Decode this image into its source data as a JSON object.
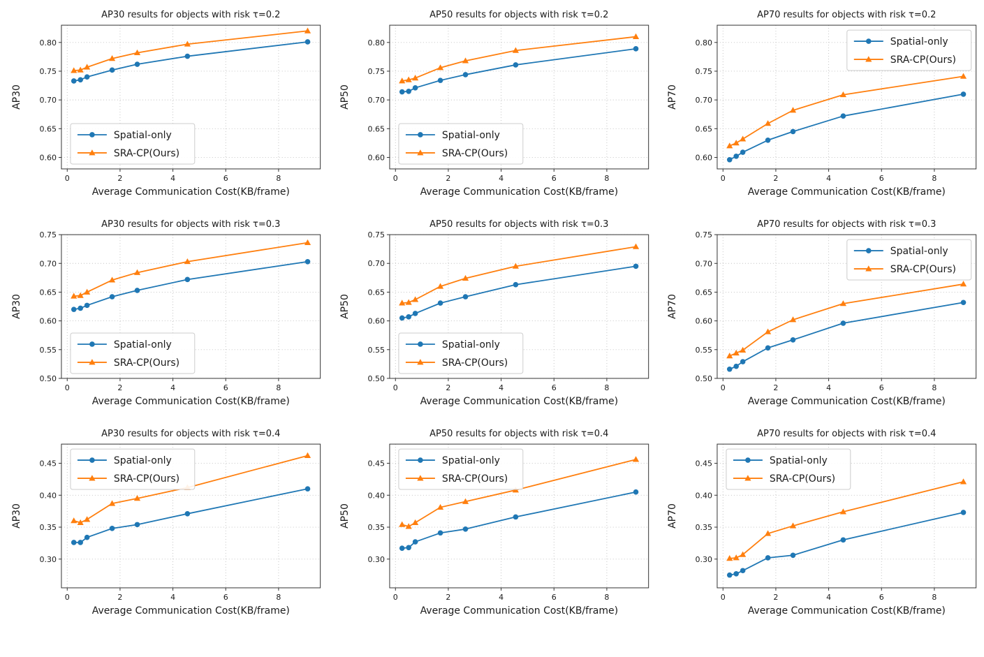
{
  "page": {
    "background": "#ffffff",
    "description": "3x3 grid of matplotlib line charts comparing collaborative perception methods"
  },
  "styles": {
    "grid_color": "#bfbfbf",
    "axis_color": "#333333",
    "text_color": "#1a1a1a",
    "legend_border": "#cccccc",
    "legend_fill": "#ffffff",
    "series_colors": {
      "spatial_only": "#1f77b4",
      "sra_cp": "#ff7f0e"
    }
  },
  "legend": {
    "items": [
      {
        "label": "Spatial-only",
        "marker": "circle",
        "color": "#1f77b4"
      },
      {
        "label": "SRA-CP(Ours)",
        "marker": "triangle",
        "color": "#ff7f0e"
      }
    ]
  },
  "xlabel": "Average Communication Cost(KB/frame)",
  "chart_data": [
    {
      "id": "ap30-tau-0-2",
      "type": "line",
      "title": "AP30 results for objects with risk τ=0.2",
      "xlabel": "Average Communication Cost(KB/frame)",
      "ylabel": "AP30",
      "x": [
        0.25,
        0.5,
        0.75,
        1.7,
        2.65,
        4.55,
        9.1
      ],
      "series": [
        {
          "name": "Spatial-only",
          "marker": "circle",
          "color": "#1f77b4",
          "values": [
            0.733,
            0.735,
            0.74,
            0.752,
            0.762,
            0.776,
            0.801
          ]
        },
        {
          "name": "SRA-CP(Ours)",
          "marker": "triangle",
          "color": "#ff7f0e",
          "values": [
            0.751,
            0.752,
            0.757,
            0.772,
            0.782,
            0.797,
            0.82
          ]
        }
      ],
      "xlim": [
        -0.22,
        9.58
      ],
      "ylim": [
        0.58,
        0.83
      ],
      "xticks": [
        0,
        2,
        4,
        6,
        8
      ],
      "yticks": [
        0.6,
        0.65,
        0.7,
        0.75,
        0.8
      ],
      "grid": true,
      "legend_position": "lower-left"
    },
    {
      "id": "ap50-tau-0-2",
      "type": "line",
      "title": "AP50 results for objects with risk τ=0.2",
      "xlabel": "Average Communication Cost(KB/frame)",
      "ylabel": "AP50",
      "x": [
        0.25,
        0.5,
        0.75,
        1.7,
        2.65,
        4.55,
        9.1
      ],
      "series": [
        {
          "name": "Spatial-only",
          "marker": "circle",
          "color": "#1f77b4",
          "values": [
            0.714,
            0.715,
            0.721,
            0.734,
            0.744,
            0.761,
            0.789
          ]
        },
        {
          "name": "SRA-CP(Ours)",
          "marker": "triangle",
          "color": "#ff7f0e",
          "values": [
            0.733,
            0.735,
            0.738,
            0.756,
            0.768,
            0.786,
            0.81
          ]
        }
      ],
      "xlim": [
        -0.22,
        9.58
      ],
      "ylim": [
        0.58,
        0.83
      ],
      "xticks": [
        0,
        2,
        4,
        6,
        8
      ],
      "yticks": [
        0.6,
        0.65,
        0.7,
        0.75,
        0.8
      ],
      "grid": true,
      "legend_position": "lower-left"
    },
    {
      "id": "ap70-tau-0-2",
      "type": "line",
      "title": "AP70 results for objects with risk τ=0.2",
      "xlabel": "Average Communication Cost(KB/frame)",
      "ylabel": "AP70",
      "x": [
        0.25,
        0.5,
        0.75,
        1.7,
        2.65,
        4.55,
        9.1
      ],
      "series": [
        {
          "name": "Spatial-only",
          "marker": "circle",
          "color": "#1f77b4",
          "values": [
            0.596,
            0.602,
            0.609,
            0.63,
            0.645,
            0.672,
            0.71
          ]
        },
        {
          "name": "SRA-CP(Ours)",
          "marker": "triangle",
          "color": "#ff7f0e",
          "values": [
            0.62,
            0.625,
            0.632,
            0.659,
            0.682,
            0.709,
            0.741
          ]
        }
      ],
      "xlim": [
        -0.22,
        9.58
      ],
      "ylim": [
        0.58,
        0.83
      ],
      "xticks": [
        0,
        2,
        4,
        6,
        8
      ],
      "yticks": [
        0.6,
        0.65,
        0.7,
        0.75,
        0.8
      ],
      "grid": true,
      "legend_position": "upper-right"
    },
    {
      "id": "ap30-tau-0-3",
      "type": "line",
      "title": "AP30 results for objects with risk τ=0.3",
      "xlabel": "Average Communication Cost(KB/frame)",
      "ylabel": "AP30",
      "x": [
        0.25,
        0.5,
        0.75,
        1.7,
        2.65,
        4.55,
        9.1
      ],
      "series": [
        {
          "name": "Spatial-only",
          "marker": "circle",
          "color": "#1f77b4",
          "values": [
            0.62,
            0.622,
            0.627,
            0.642,
            0.653,
            0.672,
            0.703
          ]
        },
        {
          "name": "SRA-CP(Ours)",
          "marker": "triangle",
          "color": "#ff7f0e",
          "values": [
            0.643,
            0.644,
            0.65,
            0.671,
            0.684,
            0.703,
            0.736
          ]
        }
      ],
      "xlim": [
        -0.22,
        9.58
      ],
      "ylim": [
        0.5,
        0.75
      ],
      "xticks": [
        0,
        2,
        4,
        6,
        8
      ],
      "yticks": [
        0.5,
        0.55,
        0.6,
        0.65,
        0.7,
        0.75
      ],
      "grid": true,
      "legend_position": "lower-left"
    },
    {
      "id": "ap50-tau-0-3",
      "type": "line",
      "title": "AP50 results for objects with risk τ=0.3",
      "xlabel": "Average Communication Cost(KB/frame)",
      "ylabel": "AP50",
      "x": [
        0.25,
        0.5,
        0.75,
        1.7,
        2.65,
        4.55,
        9.1
      ],
      "series": [
        {
          "name": "Spatial-only",
          "marker": "circle",
          "color": "#1f77b4",
          "values": [
            0.605,
            0.607,
            0.613,
            0.631,
            0.642,
            0.663,
            0.695
          ]
        },
        {
          "name": "SRA-CP(Ours)",
          "marker": "triangle",
          "color": "#ff7f0e",
          "values": [
            0.631,
            0.632,
            0.637,
            0.66,
            0.674,
            0.695,
            0.729
          ]
        }
      ],
      "xlim": [
        -0.22,
        9.58
      ],
      "ylim": [
        0.5,
        0.75
      ],
      "xticks": [
        0,
        2,
        4,
        6,
        8
      ],
      "yticks": [
        0.5,
        0.55,
        0.6,
        0.65,
        0.7,
        0.75
      ],
      "grid": true,
      "legend_position": "lower-left"
    },
    {
      "id": "ap70-tau-0-3",
      "type": "line",
      "title": "AP70 results for objects with risk τ=0.3",
      "xlabel": "Average Communication Cost(KB/frame)",
      "ylabel": "AP70",
      "x": [
        0.25,
        0.5,
        0.75,
        1.7,
        2.65,
        4.55,
        9.1
      ],
      "series": [
        {
          "name": "Spatial-only",
          "marker": "circle",
          "color": "#1f77b4",
          "values": [
            0.516,
            0.521,
            0.529,
            0.553,
            0.567,
            0.596,
            0.632
          ]
        },
        {
          "name": "SRA-CP(Ours)",
          "marker": "triangle",
          "color": "#ff7f0e",
          "values": [
            0.539,
            0.544,
            0.549,
            0.581,
            0.602,
            0.63,
            0.664
          ]
        }
      ],
      "xlim": [
        -0.22,
        9.58
      ],
      "ylim": [
        0.5,
        0.75
      ],
      "xticks": [
        0,
        2,
        4,
        6,
        8
      ],
      "yticks": [
        0.5,
        0.55,
        0.6,
        0.65,
        0.7,
        0.75
      ],
      "grid": true,
      "legend_position": "upper-right"
    },
    {
      "id": "ap30-tau-0-4",
      "type": "line",
      "title": "AP30 results for objects with risk τ=0.4",
      "xlabel": "Average Communication Cost(KB/frame)",
      "ylabel": "AP30",
      "x": [
        0.25,
        0.5,
        0.75,
        1.7,
        2.65,
        4.55,
        9.1
      ],
      "series": [
        {
          "name": "Spatial-only",
          "marker": "circle",
          "color": "#1f77b4",
          "values": [
            0.326,
            0.326,
            0.334,
            0.348,
            0.354,
            0.371,
            0.41
          ]
        },
        {
          "name": "SRA-CP(Ours)",
          "marker": "triangle",
          "color": "#ff7f0e",
          "values": [
            0.36,
            0.357,
            0.362,
            0.387,
            0.395,
            0.412,
            0.462
          ]
        }
      ],
      "xlim": [
        -0.22,
        9.58
      ],
      "ylim": [
        0.255,
        0.48
      ],
      "xticks": [
        0,
        2,
        4,
        6,
        8
      ],
      "yticks": [
        0.3,
        0.35,
        0.4,
        0.45
      ],
      "grid": true,
      "legend_position": "upper-left"
    },
    {
      "id": "ap50-tau-0-4",
      "type": "line",
      "title": "AP50 results for objects with risk τ=0.4",
      "xlabel": "Average Communication Cost(KB/frame)",
      "ylabel": "AP50",
      "x": [
        0.25,
        0.5,
        0.75,
        1.7,
        2.65,
        4.55,
        9.1
      ],
      "series": [
        {
          "name": "Spatial-only",
          "marker": "circle",
          "color": "#1f77b4",
          "values": [
            0.317,
            0.318,
            0.327,
            0.341,
            0.347,
            0.366,
            0.405
          ]
        },
        {
          "name": "SRA-CP(Ours)",
          "marker": "triangle",
          "color": "#ff7f0e",
          "values": [
            0.354,
            0.351,
            0.357,
            0.381,
            0.39,
            0.408,
            0.456
          ]
        }
      ],
      "xlim": [
        -0.22,
        9.58
      ],
      "ylim": [
        0.255,
        0.48
      ],
      "xticks": [
        0,
        2,
        4,
        6,
        8
      ],
      "yticks": [
        0.3,
        0.35,
        0.4,
        0.45
      ],
      "grid": true,
      "legend_position": "upper-left"
    },
    {
      "id": "ap70-tau-0-4",
      "type": "line",
      "title": "AP70 results for objects with risk τ=0.4",
      "xlabel": "Average Communication Cost(KB/frame)",
      "ylabel": "AP70",
      "x": [
        0.25,
        0.5,
        0.75,
        1.7,
        2.65,
        4.55,
        9.1
      ],
      "series": [
        {
          "name": "Spatial-only",
          "marker": "circle",
          "color": "#1f77b4",
          "values": [
            0.275,
            0.277,
            0.282,
            0.302,
            0.306,
            0.33,
            0.373
          ]
        },
        {
          "name": "SRA-CP(Ours)",
          "marker": "triangle",
          "color": "#ff7f0e",
          "values": [
            0.301,
            0.302,
            0.307,
            0.34,
            0.352,
            0.374,
            0.421
          ]
        }
      ],
      "xlim": [
        -0.22,
        9.58
      ],
      "ylim": [
        0.255,
        0.48
      ],
      "xticks": [
        0,
        2,
        4,
        6,
        8
      ],
      "yticks": [
        0.3,
        0.35,
        0.4,
        0.45
      ],
      "grid": true,
      "legend_position": "upper-left"
    }
  ]
}
